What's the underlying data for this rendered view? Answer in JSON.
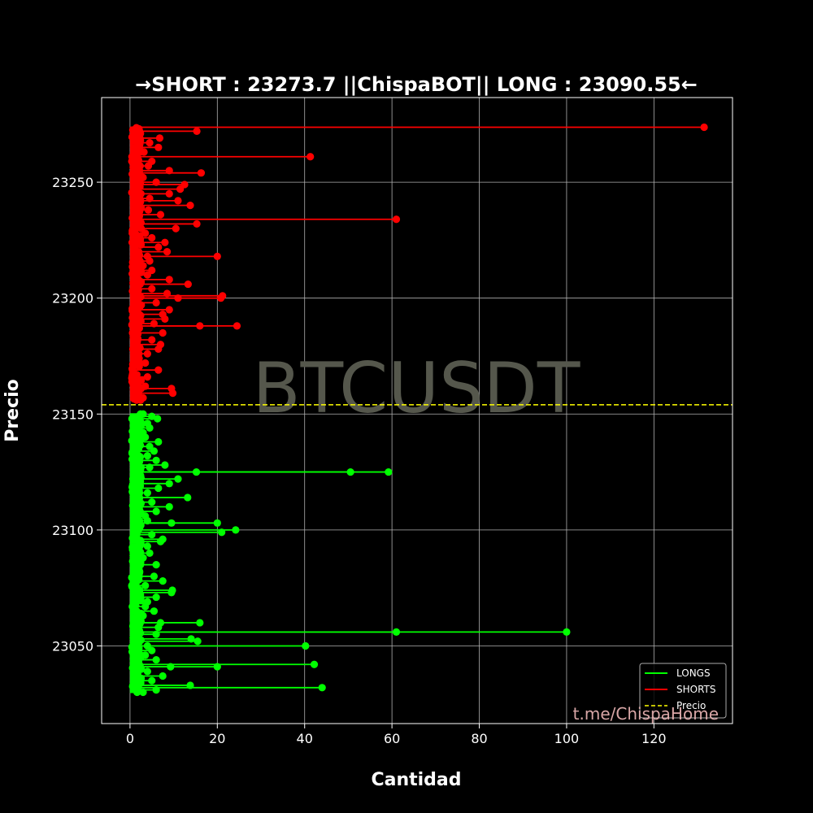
{
  "chart_data": {
    "type": "scatter",
    "title": "→SHORT : 23273.7  ||ChispaBOT||  LONG : 23090.55←",
    "xlabel": "Cantidad",
    "ylabel": "Precio",
    "watermark": "BTCUSDT",
    "footer": "t.me/ChispaHome",
    "xlim": [
      -6.5,
      138
    ],
    "ylim": [
      23016.5,
      23286.5
    ],
    "xticks": [
      0,
      20,
      40,
      60,
      80,
      100,
      120
    ],
    "yticks": [
      23050,
      23100,
      23150,
      23200,
      23250
    ],
    "grid": true,
    "legend_position": "bottom-right",
    "price": 23154,
    "colors": {
      "longs": "#00ff00",
      "shorts": "#ff0000",
      "price": "#ffff00",
      "background": "#000000"
    },
    "legend": [
      {
        "label": "LONGS",
        "style": "solid",
        "color": "#00ff00"
      },
      {
        "label": "SHORTS",
        "style": "solid",
        "color": "#ff0000"
      },
      {
        "label": "Precio",
        "style": "dashed",
        "color": "#ffff00"
      }
    ],
    "series": [
      {
        "name": "SHORTS",
        "color": "#ff0000",
        "points": [
          [
            23273.7,
            131.5
          ],
          [
            23272,
            15.3
          ],
          [
            23269,
            6.8
          ],
          [
            23267,
            4.5
          ],
          [
            23265,
            6.5
          ],
          [
            23263,
            3.2
          ],
          [
            23261,
            41.3
          ],
          [
            23259,
            5.0
          ],
          [
            23257,
            4.2
          ],
          [
            23255,
            9.0
          ],
          [
            23254,
            16.3
          ],
          [
            23252,
            3.0
          ],
          [
            23250,
            6.0
          ],
          [
            23249,
            12.5
          ],
          [
            23247,
            11.5
          ],
          [
            23245,
            9.0
          ],
          [
            23243,
            4.5
          ],
          [
            23242,
            11.0
          ],
          [
            23240,
            13.8
          ],
          [
            23238,
            4.2
          ],
          [
            23236,
            7.0
          ],
          [
            23234,
            61.0
          ],
          [
            23232,
            15.3
          ],
          [
            23230,
            10.5
          ],
          [
            23228,
            3.5
          ],
          [
            23226,
            5.0
          ],
          [
            23224,
            8.0
          ],
          [
            23222,
            6.5
          ],
          [
            23220,
            8.5
          ],
          [
            23218,
            4.0
          ],
          [
            23218,
            20.0
          ],
          [
            23216,
            4.5
          ],
          [
            23214,
            3.0
          ],
          [
            23212,
            5.0
          ],
          [
            23210,
            4.0
          ],
          [
            23208,
            9.0
          ],
          [
            23206,
            13.3
          ],
          [
            23204,
            5.0
          ],
          [
            23202,
            8.5
          ],
          [
            23201,
            21.2
          ],
          [
            23200,
            20.8
          ],
          [
            23200,
            11.0
          ],
          [
            23198,
            6.0
          ],
          [
            23195,
            9.0
          ],
          [
            23193,
            7.5
          ],
          [
            23191,
            8.0
          ],
          [
            23189,
            5.5
          ],
          [
            23188,
            24.5
          ],
          [
            23188,
            16.0
          ],
          [
            23185,
            7.5
          ],
          [
            23182,
            5.0
          ],
          [
            23180,
            7.0
          ],
          [
            23178,
            6.5
          ],
          [
            23176,
            4.0
          ],
          [
            23172,
            3.5
          ],
          [
            23169,
            6.5
          ],
          [
            23166,
            4.0
          ],
          [
            23162,
            3.5
          ],
          [
            23161,
            9.5
          ],
          [
            23159,
            9.8
          ],
          [
            23157,
            3.0
          ],
          [
            23156,
            1.5
          ]
        ]
      },
      {
        "name": "LONGS",
        "color": "#00ff00",
        "points": [
          [
            23150,
            3.0
          ],
          [
            23149,
            5.0
          ],
          [
            23148,
            6.3
          ],
          [
            23146,
            4.0
          ],
          [
            23144,
            4.5
          ],
          [
            23142,
            3.0
          ],
          [
            23140,
            3.5
          ],
          [
            23138,
            6.5
          ],
          [
            23136,
            4.5
          ],
          [
            23134,
            5.5
          ],
          [
            23132,
            4.0
          ],
          [
            23130,
            6.0
          ],
          [
            23128,
            8.0
          ],
          [
            23127,
            4.5
          ],
          [
            23125,
            59.2
          ],
          [
            23125,
            50.5
          ],
          [
            23125,
            15.2
          ],
          [
            23122,
            11.0
          ],
          [
            23120,
            9.0
          ],
          [
            23118,
            6.5
          ],
          [
            23116,
            4.0
          ],
          [
            23114,
            13.2
          ],
          [
            23112,
            5.0
          ],
          [
            23110,
            9.0
          ],
          [
            23108,
            6.0
          ],
          [
            23106,
            3.5
          ],
          [
            23104,
            4.0
          ],
          [
            23103,
            9.5
          ],
          [
            23103,
            20.0
          ],
          [
            23100,
            24.2
          ],
          [
            23099,
            21.0
          ],
          [
            23098,
            5.0
          ],
          [
            23096,
            7.5
          ],
          [
            23095,
            7.0
          ],
          [
            23093,
            4.0
          ],
          [
            23090,
            4.5
          ],
          [
            23088,
            3.0
          ],
          [
            23085,
            6.0
          ],
          [
            23080,
            5.5
          ],
          [
            23078,
            7.5
          ],
          [
            23076,
            3.5
          ],
          [
            23074,
            9.7
          ],
          [
            23073,
            9.5
          ],
          [
            23071,
            6.0
          ],
          [
            23069,
            4.0
          ],
          [
            23067,
            3.5
          ],
          [
            23065,
            5.5
          ],
          [
            23063,
            3.0
          ],
          [
            23060,
            7.0
          ],
          [
            23060,
            16.0
          ],
          [
            23058,
            6.5
          ],
          [
            23056,
            100.0
          ],
          [
            23056,
            61.0
          ],
          [
            23055,
            6.0
          ],
          [
            23053,
            14.0
          ],
          [
            23052,
            15.5
          ],
          [
            23050,
            4.0
          ],
          [
            23050,
            40.2
          ],
          [
            23048,
            5.0
          ],
          [
            23046,
            3.5
          ],
          [
            23044,
            6.0
          ],
          [
            23042,
            42.2
          ],
          [
            23041,
            20.0
          ],
          [
            23041,
            9.3
          ],
          [
            23039,
            4.0
          ],
          [
            23037,
            7.5
          ],
          [
            23035,
            5.0
          ],
          [
            23033,
            13.8
          ],
          [
            23032,
            44.0
          ],
          [
            23031,
            6.0
          ],
          [
            23030,
            3.0
          ]
        ]
      }
    ]
  }
}
